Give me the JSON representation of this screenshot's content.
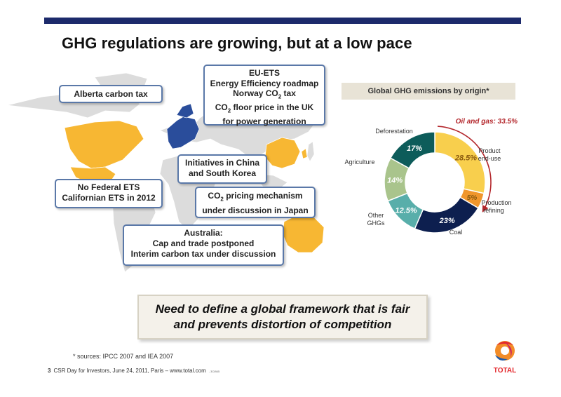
{
  "title": "GHG regulations are growing, but at a low pace",
  "callouts": {
    "alberta": "Alberta carbon tax",
    "eu": [
      "EU-ETS",
      "Energy Efficiency roadmap",
      "Norway CO",
      "2",
      " tax",
      "CO",
      "2",
      " floor price in the UK",
      "for power generation"
    ],
    "china": [
      "Initiatives in China",
      "and South Korea"
    ],
    "us": [
      "No Federal ETS",
      "Californian ETS in 2012"
    ],
    "japan": [
      "CO",
      "2",
      " pricing mechanism",
      "under discussion in Japan"
    ],
    "australia": [
      "Australia:",
      "Cap and trade postponed",
      "Interim carbon tax under discussion"
    ]
  },
  "chart_title": "Global GHG emissions by origin*",
  "chart_data": {
    "type": "pie",
    "title": "Global GHG emissions by origin*",
    "slices": [
      {
        "label": "Product end-use",
        "value": 28.5,
        "display": "28.5%",
        "color": "#f8cf4d"
      },
      {
        "label": "Production refining",
        "value": 5,
        "display": "5%",
        "color": "#f0962c"
      },
      {
        "label": "Coal",
        "value": 23,
        "display": "23%",
        "color": "#0d1f4f"
      },
      {
        "label": "Other GHGs",
        "value": 12.5,
        "display": "12.5%",
        "color": "#58aeaa"
      },
      {
        "label": "Agriculture",
        "value": 14,
        "display": "14%",
        "color": "#a9c48c"
      },
      {
        "label": "Deforestation",
        "value": 17,
        "display": "17%",
        "color": "#0d5c5a"
      }
    ],
    "annotation": "Oil and gas: 33.5%",
    "labels": {
      "product": [
        "Product",
        "end-use"
      ],
      "production": [
        "Production",
        "refining"
      ],
      "coal": "Coal",
      "other": [
        "Other",
        "GHGs"
      ],
      "agriculture": "Agriculture",
      "deforestation": "Deforestation"
    }
  },
  "conclusion": [
    "Need to define a global framework that is fair",
    "and prevents distortion of competition"
  ],
  "source": "*  sources: IPCC 2007 and IEA 2007",
  "footer": {
    "page": "3",
    "text": "CSR Day for Investors, June 24, 2011, Paris – www.total.com",
    "code": "- 3CI865"
  },
  "logo_text": "TOTAL",
  "colors": {
    "accent": "#1c2a6b",
    "callout_border": "#5a78a8",
    "highlight_country": "#f7b733",
    "eu_blue": "#2a4d9b",
    "annotation_red": "#b3262b"
  }
}
